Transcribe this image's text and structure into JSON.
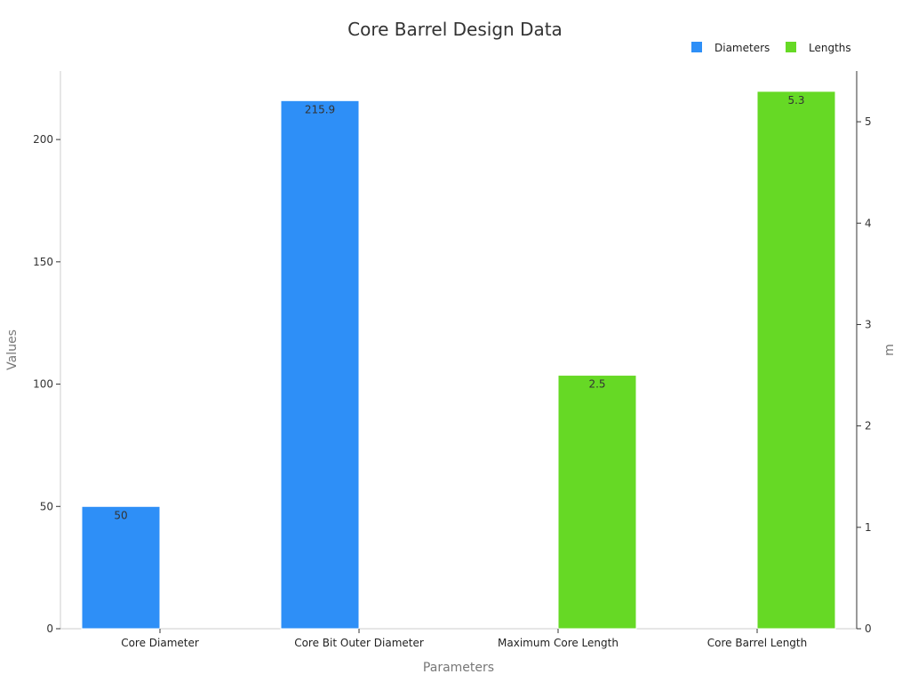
{
  "chart_data": {
    "type": "bar",
    "title": "Core Barrel Design Data",
    "xlabel": "Parameters",
    "ylabel": "Values",
    "y2label": "m",
    "categories": [
      "Core Diameter",
      "Core Bit Outer Diameter",
      "Maximum Core Length",
      "Core Barrel Length"
    ],
    "ylim": [
      0,
      228
    ],
    "y2lim": [
      0,
      5.5
    ],
    "yticks": [
      0,
      50,
      100,
      150,
      200
    ],
    "y2ticks": [
      0,
      1,
      2,
      3,
      4,
      5
    ],
    "legend_position": "top-right",
    "series": [
      {
        "name": "Diameters",
        "axis": "left",
        "color": "#2e8ff7",
        "values": [
          50,
          215.9,
          null,
          null
        ],
        "labels": [
          "50",
          "215.9",
          "",
          ""
        ]
      },
      {
        "name": "Lengths",
        "axis": "right",
        "color": "#66d925",
        "values": [
          null,
          null,
          2.5,
          5.3
        ],
        "labels": [
          "",
          "",
          "2.5",
          "5.3"
        ]
      }
    ]
  }
}
